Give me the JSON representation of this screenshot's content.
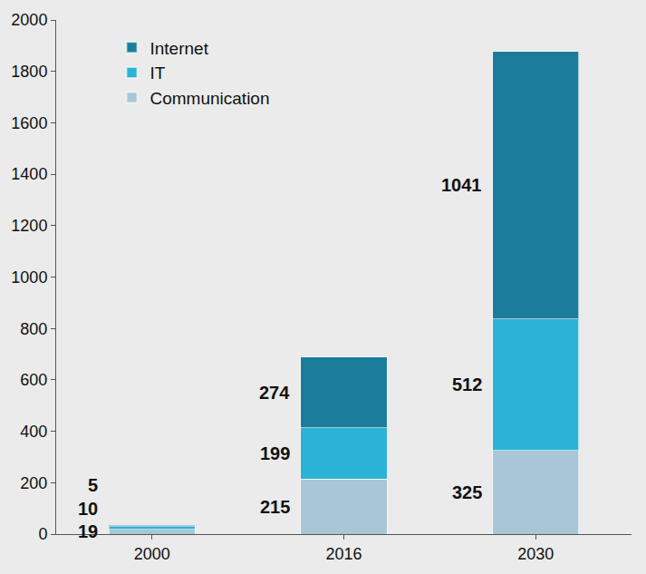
{
  "chart_data": {
    "type": "bar",
    "stacked": true,
    "categories": [
      "2000",
      "2016",
      "2030"
    ],
    "series": [
      {
        "name": "Communication",
        "color": "#a9c6d6",
        "values": [
          19,
          215,
          325
        ]
      },
      {
        "name": "IT",
        "color": "#2bb3d6",
        "values": [
          10,
          199,
          512
        ]
      },
      {
        "name": "Internet",
        "color": "#1c7d9b",
        "values": [
          5,
          274,
          1041
        ]
      }
    ],
    "ylim": [
      0,
      2000
    ],
    "yticks": [
      0,
      200,
      400,
      600,
      800,
      1000,
      1200,
      1400,
      1600,
      1800,
      2000
    ],
    "grid": false,
    "legend": "upper left",
    "data_labels": true
  }
}
